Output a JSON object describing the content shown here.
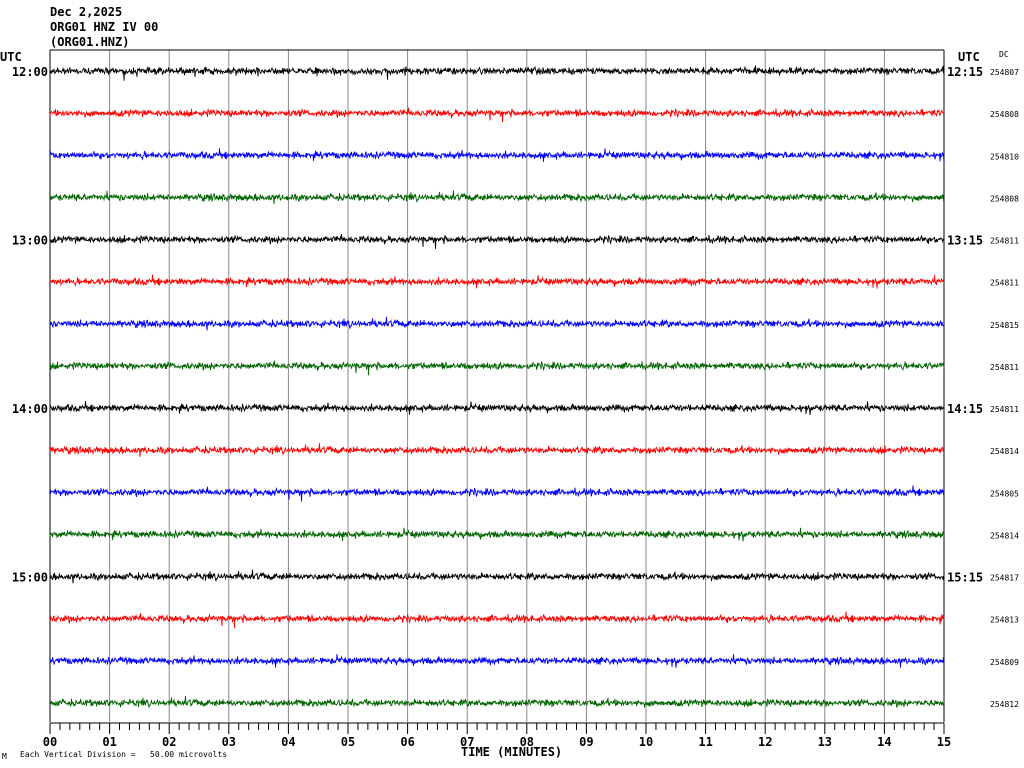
{
  "header": {
    "date": "Dec 2,2025",
    "station": "ORG01 HNZ IV 00",
    "channel": "(ORG01.HNZ)",
    "left_label": "UTC",
    "right_label": "UTC",
    "dc_label": "DC"
  },
  "chart_data": {
    "type": "line",
    "title": "ORG01 HNZ IV 00 helicorder",
    "xlabel": "TIME (MINUTES)",
    "xlim": [
      0,
      15
    ],
    "x_ticks": [
      "00",
      "01",
      "02",
      "03",
      "04",
      "05",
      "06",
      "07",
      "08",
      "09",
      "10",
      "11",
      "12",
      "13",
      "14",
      "15"
    ],
    "minor_ticks_per_minute": 6,
    "grid": true,
    "colors": [
      "#000000",
      "#ff0000",
      "#0000ff",
      "#006400"
    ],
    "rows": [
      {
        "left": "12:00",
        "right": "12:15",
        "dc": "254807"
      },
      {
        "left": "",
        "right": "",
        "dc": "254808"
      },
      {
        "left": "",
        "right": "",
        "dc": "254810"
      },
      {
        "left": "",
        "right": "",
        "dc": "254808"
      },
      {
        "left": "13:00",
        "right": "13:15",
        "dc": "254811"
      },
      {
        "left": "",
        "right": "",
        "dc": "254811"
      },
      {
        "left": "",
        "right": "",
        "dc": "254815"
      },
      {
        "left": "",
        "right": "",
        "dc": "254811"
      },
      {
        "left": "14:00",
        "right": "14:15",
        "dc": "254811"
      },
      {
        "left": "",
        "right": "",
        "dc": "254814"
      },
      {
        "left": "",
        "right": "",
        "dc": "254805"
      },
      {
        "left": "",
        "right": "",
        "dc": "254814"
      },
      {
        "left": "15:00",
        "right": "15:15",
        "dc": "254817"
      },
      {
        "left": "",
        "right": "",
        "dc": "254813"
      },
      {
        "left": "",
        "right": "",
        "dc": "254809"
      },
      {
        "left": "",
        "right": "",
        "dc": "254812"
      }
    ],
    "scale_note": "Each Vertical Division =   50.00 microvolts",
    "scale_symbol": "M"
  }
}
